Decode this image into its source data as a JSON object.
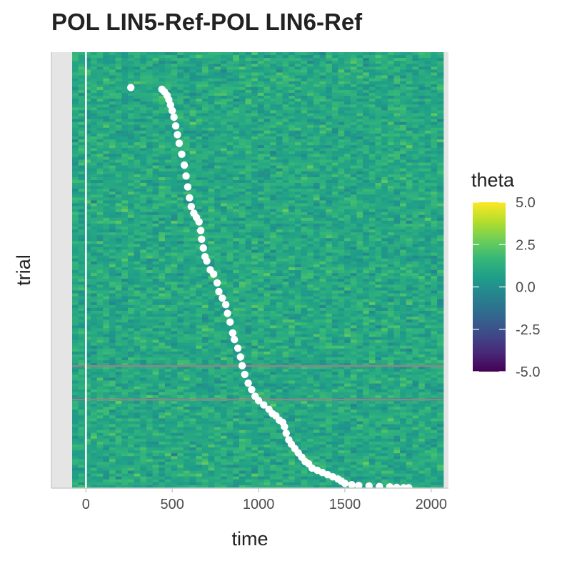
{
  "chart_data": {
    "type": "heatmap",
    "title": "POL LIN5-Ref-POL LIN6-Ref",
    "xlabel": "time",
    "ylabel": "trial",
    "xlim": [
      -200,
      2100
    ],
    "x_ticks": [
      0,
      500,
      1000,
      1500,
      2000
    ],
    "x_tick_labels": [
      "0",
      "500",
      "1000",
      "1500",
      "2000"
    ],
    "heatmap_x_range": [
      -80,
      2070
    ],
    "y_ticks_shown": false,
    "grid": false,
    "legend": {
      "title": "theta",
      "position": "right",
      "colormap": "viridis",
      "range": [
        -5.0,
        5.0
      ],
      "ticks": [
        5.0,
        2.5,
        0.0,
        -2.5,
        -5.0
      ],
      "tick_labels": [
        "5.0",
        "2.5",
        "0.0",
        "-2.5",
        "-5.0"
      ]
    },
    "colors": {
      "stimulus_line": "#ffffff",
      "response_points": "#ffffff",
      "marker_rows": "#888888",
      "panel_background": "#e5e5e5"
    },
    "vertical_line_x": 0,
    "marker_rows_fraction_from_top": [
      0.72,
      0.797
    ],
    "response_points": [
      {
        "x": 260,
        "y": 0.082
      },
      {
        "x": 440,
        "y": 0.086
      },
      {
        "x": 455,
        "y": 0.092
      },
      {
        "x": 470,
        "y": 0.1
      },
      {
        "x": 480,
        "y": 0.11
      },
      {
        "x": 490,
        "y": 0.122
      },
      {
        "x": 500,
        "y": 0.135
      },
      {
        "x": 510,
        "y": 0.15
      },
      {
        "x": 520,
        "y": 0.17
      },
      {
        "x": 530,
        "y": 0.19
      },
      {
        "x": 540,
        "y": 0.21
      },
      {
        "x": 555,
        "y": 0.235
      },
      {
        "x": 570,
        "y": 0.26
      },
      {
        "x": 580,
        "y": 0.285
      },
      {
        "x": 590,
        "y": 0.31
      },
      {
        "x": 600,
        "y": 0.335
      },
      {
        "x": 610,
        "y": 0.355
      },
      {
        "x": 625,
        "y": 0.37
      },
      {
        "x": 640,
        "y": 0.38
      },
      {
        "x": 655,
        "y": 0.39
      },
      {
        "x": 665,
        "y": 0.41
      },
      {
        "x": 670,
        "y": 0.43
      },
      {
        "x": 680,
        "y": 0.45
      },
      {
        "x": 690,
        "y": 0.47
      },
      {
        "x": 700,
        "y": 0.48
      },
      {
        "x": 720,
        "y": 0.5
      },
      {
        "x": 740,
        "y": 0.51
      },
      {
        "x": 760,
        "y": 0.53
      },
      {
        "x": 770,
        "y": 0.55
      },
      {
        "x": 790,
        "y": 0.565
      },
      {
        "x": 810,
        "y": 0.58
      },
      {
        "x": 820,
        "y": 0.6
      },
      {
        "x": 835,
        "y": 0.62
      },
      {
        "x": 850,
        "y": 0.645
      },
      {
        "x": 860,
        "y": 0.66
      },
      {
        "x": 880,
        "y": 0.68
      },
      {
        "x": 895,
        "y": 0.7
      },
      {
        "x": 905,
        "y": 0.72
      },
      {
        "x": 920,
        "y": 0.74
      },
      {
        "x": 940,
        "y": 0.76
      },
      {
        "x": 960,
        "y": 0.775
      },
      {
        "x": 980,
        "y": 0.79
      },
      {
        "x": 1000,
        "y": 0.8
      },
      {
        "x": 1030,
        "y": 0.81
      },
      {
        "x": 1060,
        "y": 0.82
      },
      {
        "x": 1080,
        "y": 0.83
      },
      {
        "x": 1100,
        "y": 0.835
      },
      {
        "x": 1120,
        "y": 0.845
      },
      {
        "x": 1140,
        "y": 0.85
      },
      {
        "x": 1150,
        "y": 0.86
      },
      {
        "x": 1160,
        "y": 0.875
      },
      {
        "x": 1175,
        "y": 0.89
      },
      {
        "x": 1190,
        "y": 0.9
      },
      {
        "x": 1210,
        "y": 0.91
      },
      {
        "x": 1230,
        "y": 0.92
      },
      {
        "x": 1250,
        "y": 0.93
      },
      {
        "x": 1270,
        "y": 0.94
      },
      {
        "x": 1290,
        "y": 0.945
      },
      {
        "x": 1310,
        "y": 0.955
      },
      {
        "x": 1340,
        "y": 0.96
      },
      {
        "x": 1370,
        "y": 0.965
      },
      {
        "x": 1400,
        "y": 0.97
      },
      {
        "x": 1430,
        "y": 0.975
      },
      {
        "x": 1460,
        "y": 0.98
      },
      {
        "x": 1480,
        "y": 0.985
      },
      {
        "x": 1500,
        "y": 0.99
      },
      {
        "x": 1540,
        "y": 0.993
      },
      {
        "x": 1580,
        "y": 0.995
      },
      {
        "x": 1640,
        "y": 0.996
      },
      {
        "x": 1700,
        "y": 0.997
      },
      {
        "x": 1760,
        "y": 0.998
      },
      {
        "x": 1800,
        "y": 0.999
      },
      {
        "x": 1840,
        "y": 1.0
      },
      {
        "x": 1870,
        "y": 1.0
      }
    ]
  }
}
